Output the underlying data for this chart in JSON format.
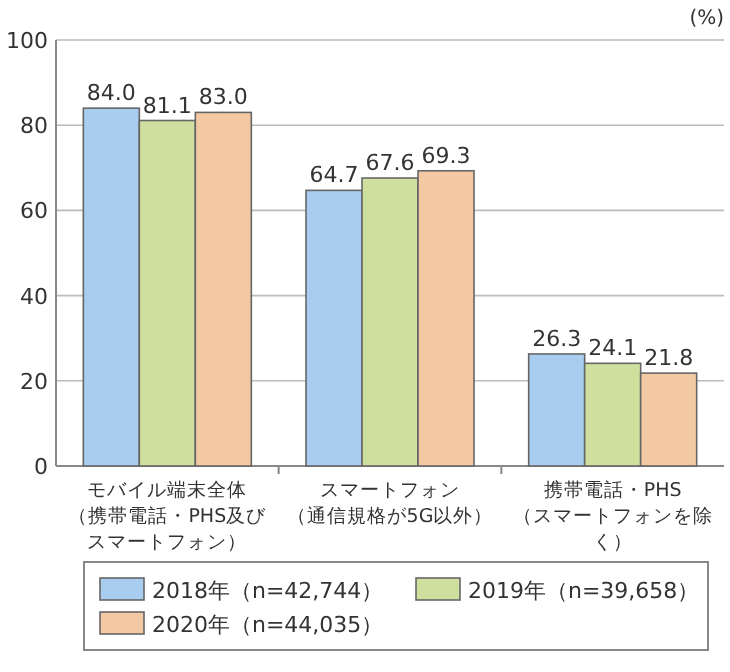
{
  "chart_data": {
    "type": "bar",
    "ylabel": "(%)",
    "categories": [
      "モバイル端末全体（携帯電話・PHS及びスマートフォン）",
      "スマートフォン（通信規格が5G以外）",
      "携帯電話・PHS（スマートフォンを除く）"
    ],
    "series": [
      {
        "name": "2018年（n=42,744）",
        "color": "#a8cdef",
        "values": [
          84.0,
          64.7,
          26.3
        ],
        "value_labels": [
          "84.0",
          "64.7",
          "26.3"
        ]
      },
      {
        "name": "2019年（n=39,658）",
        "color": "#cfe09e",
        "values": [
          81.1,
          67.6,
          24.1
        ],
        "value_labels": [
          "81.1",
          "67.6",
          "24.1"
        ]
      },
      {
        "name": "2020年（n=44,035）",
        "color": "#f2c9a2",
        "values": [
          83.0,
          69.3,
          21.8
        ],
        "value_labels": [
          "83.0",
          "69.3",
          "21.8"
        ]
      }
    ],
    "ylim": [
      0,
      100
    ],
    "yticks": [
      0,
      20,
      40,
      60,
      80,
      100
    ],
    "grid": "y",
    "legend": "bottom"
  }
}
